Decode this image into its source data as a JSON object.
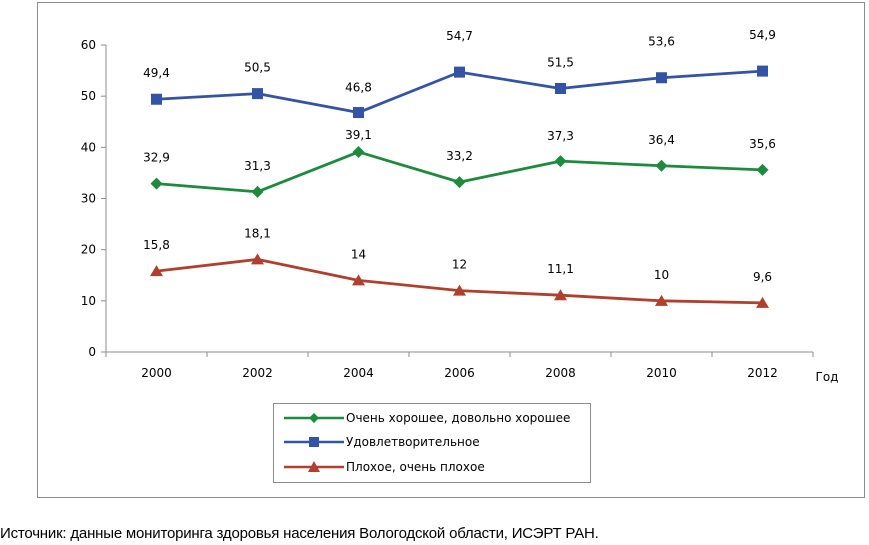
{
  "chart_data": {
    "type": "line",
    "categories": [
      "2000",
      "2002",
      "2004",
      "2006",
      "2008",
      "2010",
      "2012"
    ],
    "xlabel": "Год",
    "ylabel": "",
    "ylim": [
      0,
      60
    ],
    "yticks": [
      0,
      10,
      20,
      30,
      40,
      50,
      60
    ],
    "grid": false,
    "legend_position": "bottom",
    "series": [
      {
        "name": "Очень хорошее, довольно хорошее",
        "values": [
          32.9,
          31.3,
          39.1,
          33.2,
          37.3,
          36.4,
          35.6
        ],
        "labels": [
          "32,9",
          "31,3",
          "39,1",
          "33,2",
          "37,3",
          "36,4",
          "35,6"
        ],
        "color": "#1e8a3e",
        "marker": "diamond"
      },
      {
        "name": "Удовлетворительное",
        "values": [
          49.4,
          50.5,
          46.8,
          54.7,
          51.5,
          53.6,
          54.9
        ],
        "labels": [
          "49,4",
          "50,5",
          "46,8",
          "54,7",
          "51,5",
          "53,6",
          "54,9"
        ],
        "color": "#3553a5",
        "marker": "square"
      },
      {
        "name": "Плохое, очень  плохое",
        "values": [
          15.8,
          18.1,
          14,
          12,
          11.1,
          10,
          9.6
        ],
        "labels": [
          "15,8",
          "18,1",
          "14",
          "12",
          "11,1",
          "10",
          "9,6"
        ],
        "color": "#b0402e",
        "marker": "triangle"
      }
    ]
  },
  "source": "Источник: данные мониторинга здоровья населения Вологодской области, ИСЭРТ РАН."
}
